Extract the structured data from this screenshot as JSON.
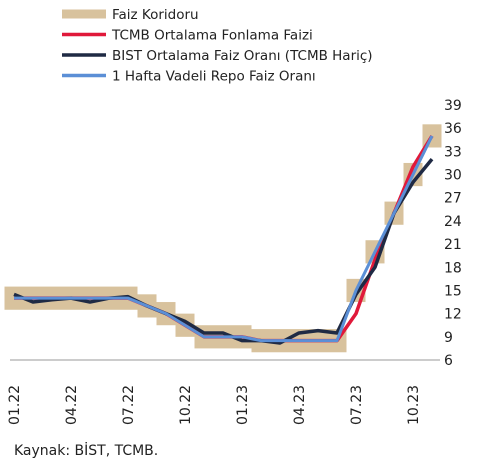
{
  "chart_data": {
    "type": "line",
    "source": "Kaynak: BİST, TCMB.",
    "categories": [
      "01.22",
      null,
      null,
      "04.22",
      null,
      null,
      "07.22",
      null,
      null,
      "10.22",
      null,
      null,
      "01.23",
      null,
      null,
      "04.23",
      null,
      null,
      "07.23",
      null,
      null,
      "10.23",
      null
    ],
    "corridor": {
      "name": "Faiz Koridoru",
      "color": "#d8c29d",
      "low": [
        12.5,
        12.5,
        12.5,
        12.5,
        12.5,
        12.5,
        12.5,
        11.5,
        10.5,
        9,
        7.5,
        7.5,
        7.5,
        7,
        7,
        7,
        7,
        7,
        13.5,
        18.5,
        23.5,
        28.5,
        33.5
      ],
      "high": [
        15.5,
        15.5,
        15.5,
        15.5,
        15.5,
        15.5,
        15.5,
        14.5,
        13.5,
        12,
        10.5,
        10.5,
        10.5,
        10,
        10,
        10,
        10,
        10,
        16.5,
        21.5,
        26.5,
        31.5,
        36.5
      ]
    },
    "series": [
      {
        "name": "TCMB Ortalama Fonlama Faizi",
        "color": "#e0193a",
        "values": [
          14,
          14,
          14,
          14,
          14,
          14,
          14,
          13,
          12,
          10.5,
          9,
          9,
          9,
          8.5,
          8.5,
          8.5,
          8.5,
          8.5,
          12,
          19,
          25,
          31,
          35
        ]
      },
      {
        "name": "BIST Ortalama Faiz Oranı (TCMB Hariç)",
        "color": "#1f2a44",
        "values": [
          14.5,
          13.5,
          13.8,
          14,
          13.5,
          14,
          14.2,
          13,
          12,
          11,
          9.5,
          9.5,
          8.5,
          8.5,
          8.2,
          9.5,
          9.8,
          9.5,
          14.5,
          18,
          25,
          29,
          32
        ]
      },
      {
        "name": "1 Hafta Vadeli Repo Faiz Oranı",
        "color": "#5b8fd6",
        "values": [
          14,
          14,
          14,
          14,
          14,
          14,
          14,
          13,
          12,
          10.5,
          9,
          9,
          9,
          8.5,
          8.5,
          8.5,
          8.5,
          8.5,
          15,
          20,
          25,
          30,
          35
        ]
      }
    ],
    "ylim": [
      6,
      39
    ],
    "yticks": [
      6,
      9,
      12,
      15,
      18,
      21,
      24,
      27,
      30,
      33,
      36,
      39
    ]
  }
}
